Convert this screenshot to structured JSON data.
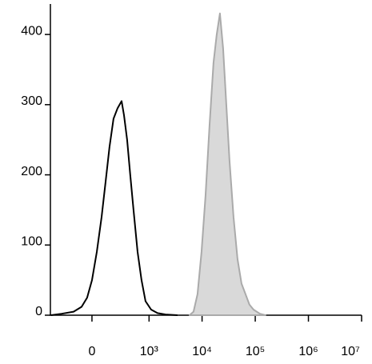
{
  "chart_data": {
    "type": "histogram-overlay",
    "x_scale": "biexponential",
    "xlim": [
      -500,
      10000000
    ],
    "xticks": [
      0,
      {
        "value": 1000,
        "label": "10³"
      },
      {
        "value": 10000,
        "label": "10⁴"
      },
      {
        "value": 100000,
        "label": "10⁵"
      },
      {
        "value": 1000000,
        "label": "10⁶"
      },
      {
        "value": 10000000,
        "label": "10⁷"
      }
    ],
    "ylim": [
      0,
      440
    ],
    "yticks": [
      0,
      100,
      200,
      300,
      400
    ],
    "series": [
      {
        "style": "filled",
        "color": "#aaaaaa",
        "fill": "#d9d9d9",
        "x": [
          5813,
          6910,
          8211,
          9758,
          11600,
          13810,
          16420,
          18850,
          21650,
          24850,
          28530,
          32770,
          39030,
          46390,
          55130,
          65530,
          77880,
          92740,
          122300,
          155700
        ],
        "values": [
          0,
          5,
          30,
          90,
          170,
          270,
          360,
          400,
          430,
          380,
          300,
          220,
          140,
          80,
          45,
          30,
          15,
          8,
          2,
          0
        ]
      },
      {
        "style": "line",
        "color": "#000000",
        "x": [
          -490,
          -294,
          -150,
          -79,
          -36,
          0,
          36,
          73,
          106,
          142,
          183,
          230,
          283,
          319,
          371,
          430,
          500,
          601,
          717,
          857,
          1095,
          1450,
          2052,
          3451
        ],
        "values": [
          0,
          2,
          5,
          12,
          25,
          50,
          90,
          140,
          190,
          240,
          280,
          295,
          305,
          285,
          250,
          200,
          150,
          90,
          50,
          20,
          8,
          3,
          1,
          0
        ]
      }
    ]
  }
}
